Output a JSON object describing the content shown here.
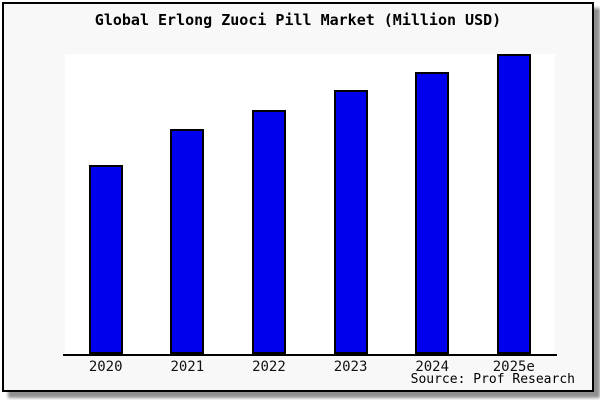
{
  "title": "Global Erlong Zuoci Pill Market (Million USD)",
  "source": "Source: Prof Research",
  "frame": {
    "background": "#f8f8f8",
    "border_color": "#000000",
    "shadow_color": "#8f8f8f"
  },
  "chart_data": {
    "type": "bar",
    "title": "Global Erlong Zuoci Pill Market (Million USD)",
    "categories": [
      "2020",
      "2021",
      "2022",
      "2023",
      "2024",
      "2025e"
    ],
    "values": [
      63,
      75,
      81.5,
      88,
      94,
      100
    ],
    "value_scale": "relative (no y-axis tick labels shown; 2025e bar = 100)",
    "xlabel": "",
    "ylabel": "",
    "ylim": [
      0,
      100
    ],
    "grid": false,
    "legend": false,
    "y_axis_visible": false,
    "x_axis_line": true,
    "bar_color": "#0000ee",
    "bar_edge_color": "#000000",
    "axis_line_color": "#000000",
    "source_note": "Source: Prof Research"
  }
}
